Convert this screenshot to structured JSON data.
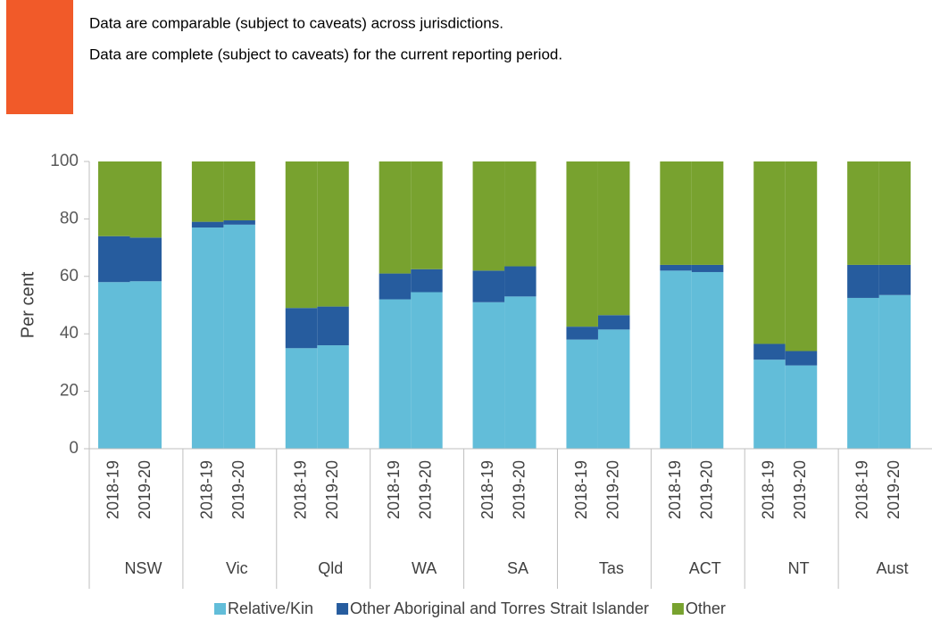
{
  "notes": [
    "Data are comparable (subject to caveats) across jurisdictions.",
    "Data are complete (subject to caveats) for the current reporting period."
  ],
  "chart_data": {
    "type": "stacked_bar",
    "y_label": "Per cent",
    "groups": [
      "NSW",
      "Vic",
      "Qld",
      "WA",
      "SA",
      "Tas",
      "ACT",
      "NT",
      "Aust"
    ],
    "categories": [
      "2018-19",
      "2019-20",
      "2018-19",
      "2019-20",
      "2018-19",
      "2019-20",
      "2018-19",
      "2019-20",
      "2018-19",
      "2019-20",
      "2018-19",
      "2019-20",
      "2018-19",
      "2019-20",
      "2018-19",
      "2019-20",
      "2018-19",
      "2019-20"
    ],
    "series": [
      {
        "name": "Relative/Kin",
        "color": "#62bdd9",
        "values": [
          58,
          58.3,
          77,
          78,
          35,
          36,
          52,
          54.5,
          51,
          53,
          38,
          41.5,
          62,
          61.5,
          31,
          29,
          52.5,
          53.5
        ]
      },
      {
        "name": "Other Aboriginal and Torres Strait Islander",
        "color": "#265c9e",
        "values": [
          16,
          15.2,
          2,
          1.5,
          14,
          13.5,
          9,
          8,
          11,
          10.5,
          4.5,
          5,
          2,
          2.5,
          5.5,
          5,
          11.5,
          10.5
        ]
      },
      {
        "name": "Other",
        "color": "#78a22f",
        "values": [
          26,
          26.5,
          21,
          20.5,
          51,
          50.5,
          39,
          37.5,
          38,
          36.5,
          57.5,
          53.5,
          36,
          36,
          63.5,
          66,
          36,
          36
        ]
      }
    ],
    "ylim": [
      0,
      100
    ],
    "yticks": [
      0,
      20,
      40,
      60,
      80,
      100
    ],
    "marker_color": "#f15a29"
  }
}
